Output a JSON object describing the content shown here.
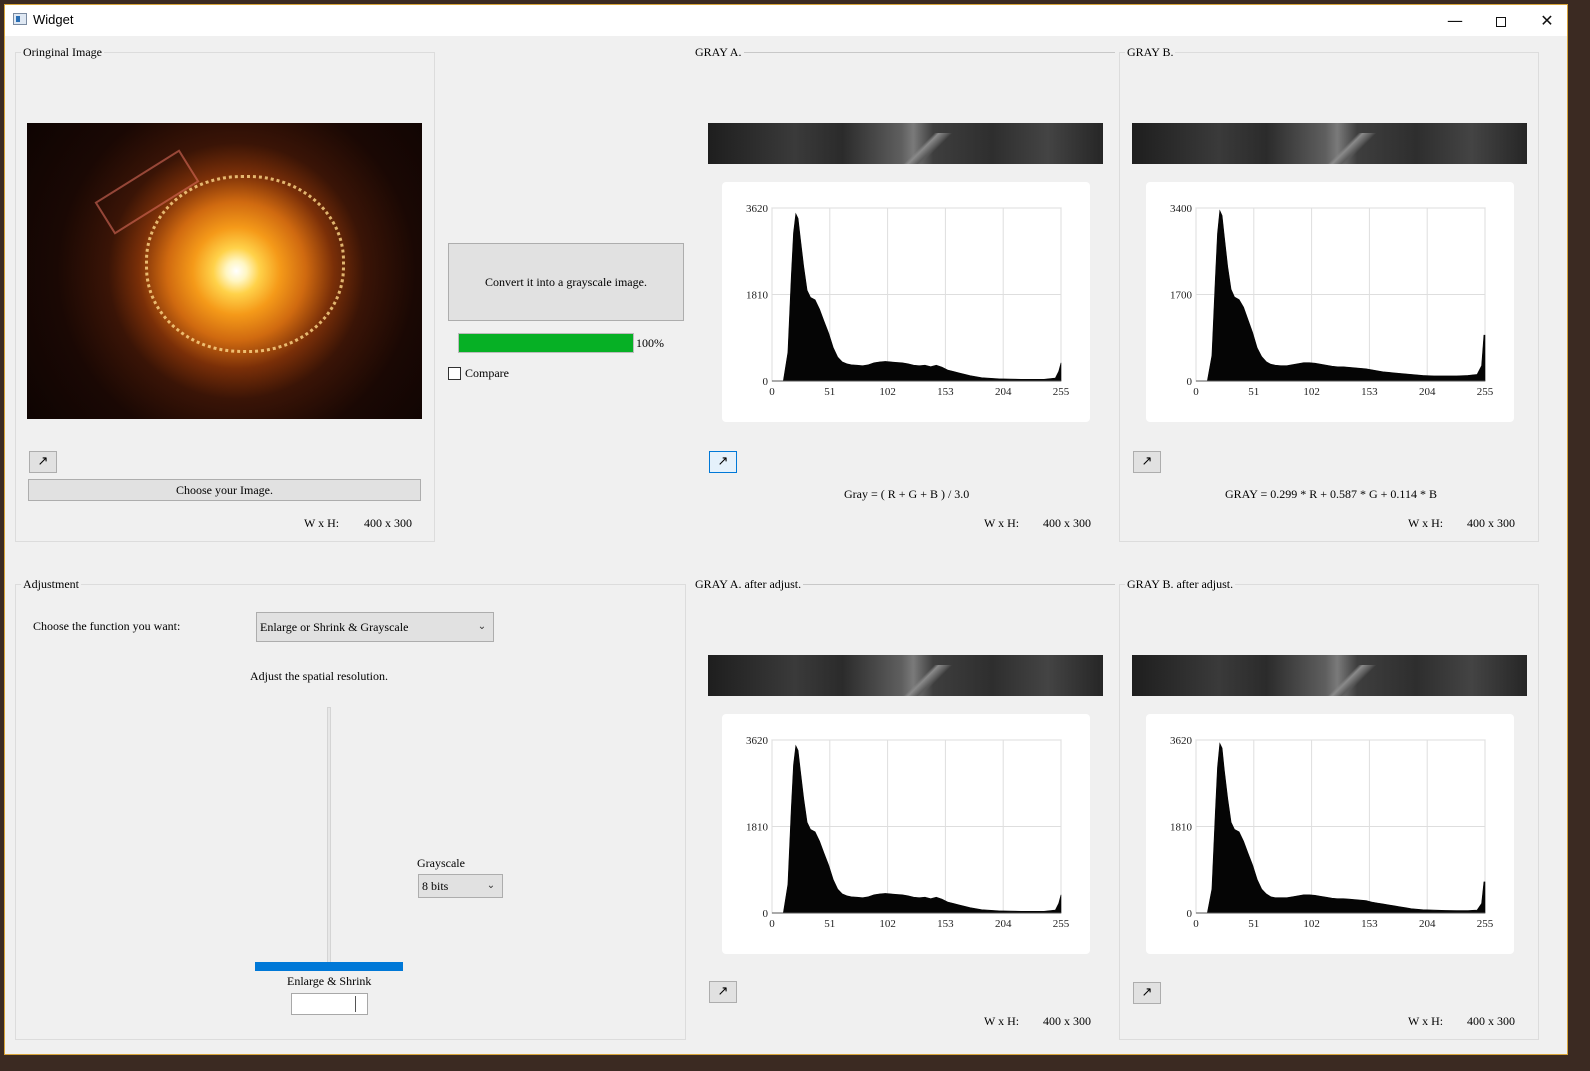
{
  "window": {
    "title": "Widget",
    "controls": {
      "minimize": "—",
      "maximize": "",
      "close": "✕"
    }
  },
  "original": {
    "title": "Oringinal Image",
    "expand_icon": "↗",
    "choose_label": "Choose your Image.",
    "wh_label": "W x H:",
    "wh_value": "400 x 300"
  },
  "middle": {
    "convert_label": "Convert it into a grayscale image.",
    "progress_percent": 100,
    "progress_text": "100%",
    "compare_label": "Compare",
    "compare_checked": false
  },
  "gray_a": {
    "title": "GRAY A.",
    "expand_icon": "↗",
    "formula": "Gray = ( R + G + B ) / 3.0",
    "wh_label": "W x H:",
    "wh_value": "400 x 300"
  },
  "gray_b": {
    "title": "GRAY B.",
    "expand_icon": "↗",
    "formula": "GRAY = 0.299 * R + 0.587 * G + 0.114 * B",
    "wh_label": "W x H:",
    "wh_value": "400 x 300"
  },
  "gray_a_adj": {
    "title": "GRAY A. after adjust.",
    "expand_icon": "↗",
    "wh_label": "W x H:",
    "wh_value": "400 x 300"
  },
  "gray_b_adj": {
    "title": "GRAY B. after adjust.",
    "expand_icon": "↗",
    "wh_label": "W x H:",
    "wh_value": "400 x 300"
  },
  "adjustment": {
    "title": "Adjustment",
    "function_label": "Choose the function you want:",
    "function_selected": "Enlarge or Shrink & Grayscale",
    "spatial_label": "Adjust the spatial resolution.",
    "grayscale_label": "Grayscale",
    "grayscale_selected": "8 bits",
    "enlarge_label": "Enlarge & Shrink",
    "slider_value_fraction": 0.0,
    "spin_value": ""
  },
  "chart_data": [
    {
      "type": "area",
      "id": "hist_a",
      "title": "",
      "x_ticks": [
        "0",
        "51",
        "102",
        "153",
        "204",
        "255"
      ],
      "y_ticks": [
        "0",
        "1810",
        "3620"
      ],
      "xlim": [
        0,
        255
      ],
      "ylim": [
        0,
        3620
      ],
      "grid": true,
      "points": [
        [
          0,
          0
        ],
        [
          10,
          0
        ],
        [
          14,
          600
        ],
        [
          17,
          2200
        ],
        [
          19,
          3100
        ],
        [
          21,
          3500
        ],
        [
          23,
          3400
        ],
        [
          25,
          3000
        ],
        [
          28,
          2400
        ],
        [
          31,
          1900
        ],
        [
          34,
          1750
        ],
        [
          38,
          1700
        ],
        [
          42,
          1500
        ],
        [
          46,
          1250
        ],
        [
          50,
          1000
        ],
        [
          54,
          700
        ],
        [
          58,
          500
        ],
        [
          62,
          400
        ],
        [
          66,
          360
        ],
        [
          70,
          340
        ],
        [
          75,
          330
        ],
        [
          80,
          320
        ],
        [
          85,
          340
        ],
        [
          90,
          380
        ],
        [
          95,
          400
        ],
        [
          100,
          410
        ],
        [
          105,
          400
        ],
        [
          110,
          390
        ],
        [
          115,
          380
        ],
        [
          120,
          360
        ],
        [
          125,
          330
        ],
        [
          130,
          320
        ],
        [
          135,
          330
        ],
        [
          140,
          300
        ],
        [
          145,
          330
        ],
        [
          150,
          290
        ],
        [
          155,
          230
        ],
        [
          160,
          200
        ],
        [
          165,
          170
        ],
        [
          170,
          140
        ],
        [
          175,
          110
        ],
        [
          180,
          90
        ],
        [
          185,
          70
        ],
        [
          190,
          60
        ],
        [
          200,
          45
        ],
        [
          210,
          40
        ],
        [
          220,
          35
        ],
        [
          230,
          35
        ],
        [
          240,
          35
        ],
        [
          250,
          60
        ],
        [
          253,
          200
        ],
        [
          255,
          380
        ]
      ]
    },
    {
      "type": "area",
      "id": "hist_b",
      "title": "",
      "x_ticks": [
        "0",
        "51",
        "102",
        "153",
        "204",
        "255"
      ],
      "y_ticks": [
        "0",
        "1700",
        "3400"
      ],
      "xlim": [
        0,
        255
      ],
      "ylim": [
        0,
        3400
      ],
      "grid": true,
      "points": [
        [
          0,
          0
        ],
        [
          10,
          0
        ],
        [
          14,
          500
        ],
        [
          17,
          2000
        ],
        [
          19,
          2900
        ],
        [
          21,
          3350
        ],
        [
          23,
          3250
        ],
        [
          25,
          2850
        ],
        [
          28,
          2250
        ],
        [
          31,
          1800
        ],
        [
          34,
          1650
        ],
        [
          38,
          1600
        ],
        [
          42,
          1450
        ],
        [
          46,
          1200
        ],
        [
          50,
          950
        ],
        [
          54,
          650
        ],
        [
          58,
          480
        ],
        [
          62,
          380
        ],
        [
          66,
          330
        ],
        [
          70,
          310
        ],
        [
          75,
          300
        ],
        [
          80,
          300
        ],
        [
          85,
          320
        ],
        [
          90,
          340
        ],
        [
          95,
          360
        ],
        [
          100,
          360
        ],
        [
          105,
          350
        ],
        [
          110,
          330
        ],
        [
          115,
          310
        ],
        [
          120,
          290
        ],
        [
          125,
          280
        ],
        [
          130,
          280
        ],
        [
          135,
          270
        ],
        [
          140,
          260
        ],
        [
          145,
          250
        ],
        [
          150,
          240
        ],
        [
          155,
          220
        ],
        [
          160,
          200
        ],
        [
          165,
          180
        ],
        [
          170,
          170
        ],
        [
          175,
          160
        ],
        [
          180,
          150
        ],
        [
          185,
          140
        ],
        [
          190,
          130
        ],
        [
          200,
          110
        ],
        [
          210,
          100
        ],
        [
          220,
          100
        ],
        [
          230,
          100
        ],
        [
          240,
          110
        ],
        [
          248,
          130
        ],
        [
          252,
          300
        ],
        [
          254,
          900
        ],
        [
          255,
          900
        ]
      ]
    },
    {
      "type": "area",
      "id": "hist_a_adj",
      "title": "",
      "x_ticks": [
        "0",
        "51",
        "102",
        "153",
        "204",
        "255"
      ],
      "y_ticks": [
        "0",
        "1810",
        "3620"
      ],
      "xlim": [
        0,
        255
      ],
      "ylim": [
        0,
        3620
      ],
      "grid": true,
      "points": [
        [
          0,
          0
        ],
        [
          10,
          0
        ],
        [
          14,
          600
        ],
        [
          17,
          2200
        ],
        [
          19,
          3100
        ],
        [
          21,
          3500
        ],
        [
          23,
          3400
        ],
        [
          25,
          3000
        ],
        [
          28,
          2400
        ],
        [
          31,
          1900
        ],
        [
          34,
          1750
        ],
        [
          38,
          1700
        ],
        [
          42,
          1500
        ],
        [
          46,
          1250
        ],
        [
          50,
          1000
        ],
        [
          54,
          700
        ],
        [
          58,
          500
        ],
        [
          62,
          400
        ],
        [
          66,
          360
        ],
        [
          70,
          340
        ],
        [
          75,
          330
        ],
        [
          80,
          320
        ],
        [
          85,
          340
        ],
        [
          90,
          380
        ],
        [
          95,
          400
        ],
        [
          100,
          410
        ],
        [
          105,
          400
        ],
        [
          110,
          390
        ],
        [
          115,
          380
        ],
        [
          120,
          360
        ],
        [
          125,
          330
        ],
        [
          130,
          320
        ],
        [
          135,
          330
        ],
        [
          140,
          300
        ],
        [
          145,
          330
        ],
        [
          150,
          290
        ],
        [
          155,
          230
        ],
        [
          160,
          200
        ],
        [
          165,
          170
        ],
        [
          170,
          140
        ],
        [
          175,
          110
        ],
        [
          180,
          90
        ],
        [
          185,
          70
        ],
        [
          190,
          60
        ],
        [
          200,
          45
        ],
        [
          210,
          40
        ],
        [
          220,
          35
        ],
        [
          230,
          35
        ],
        [
          240,
          35
        ],
        [
          250,
          60
        ],
        [
          253,
          200
        ],
        [
          255,
          380
        ]
      ]
    },
    {
      "type": "area",
      "id": "hist_b_adj",
      "title": "",
      "x_ticks": [
        "0",
        "51",
        "102",
        "153",
        "204",
        "255"
      ],
      "y_ticks": [
        "0",
        "1810",
        "3620"
      ],
      "xlim": [
        0,
        255
      ],
      "ylim": [
        0,
        3620
      ],
      "grid": true,
      "points": [
        [
          0,
          0
        ],
        [
          10,
          0
        ],
        [
          14,
          500
        ],
        [
          17,
          2100
        ],
        [
          19,
          3050
        ],
        [
          21,
          3550
        ],
        [
          23,
          3450
        ],
        [
          25,
          3000
        ],
        [
          28,
          2400
        ],
        [
          31,
          1900
        ],
        [
          34,
          1750
        ],
        [
          38,
          1700
        ],
        [
          42,
          1500
        ],
        [
          46,
          1250
        ],
        [
          50,
          1000
        ],
        [
          54,
          700
        ],
        [
          58,
          500
        ],
        [
          62,
          400
        ],
        [
          66,
          340
        ],
        [
          70,
          320
        ],
        [
          75,
          320
        ],
        [
          80,
          320
        ],
        [
          85,
          340
        ],
        [
          90,
          360
        ],
        [
          95,
          380
        ],
        [
          100,
          380
        ],
        [
          105,
          370
        ],
        [
          110,
          350
        ],
        [
          115,
          330
        ],
        [
          120,
          310
        ],
        [
          125,
          300
        ],
        [
          130,
          300
        ],
        [
          135,
          290
        ],
        [
          140,
          280
        ],
        [
          145,
          270
        ],
        [
          150,
          260
        ],
        [
          155,
          230
        ],
        [
          160,
          210
        ],
        [
          165,
          190
        ],
        [
          170,
          170
        ],
        [
          175,
          150
        ],
        [
          180,
          130
        ],
        [
          185,
          110
        ],
        [
          190,
          90
        ],
        [
          200,
          70
        ],
        [
          210,
          60
        ],
        [
          220,
          55
        ],
        [
          230,
          50
        ],
        [
          240,
          50
        ],
        [
          248,
          60
        ],
        [
          252,
          200
        ],
        [
          254,
          650
        ],
        [
          255,
          650
        ]
      ]
    }
  ],
  "colors": {
    "progress_fill": "#06b025",
    "slider_handle": "#0078d7",
    "window_bg": "#f0f0f0"
  },
  "icons": {
    "expand": "arrow-up-right-icon",
    "dropdown": "chevron-down-icon"
  }
}
